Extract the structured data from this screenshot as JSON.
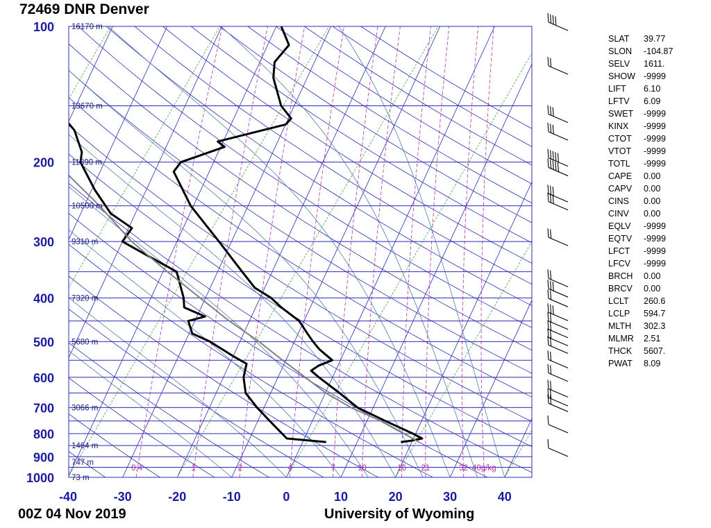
{
  "header": {
    "title": "72469 DNR Denver"
  },
  "footer": {
    "date": "00Z 04 Nov 2019",
    "source": "University of Wyoming"
  },
  "chart_data": {
    "type": "line",
    "title": "72469 DNR Denver",
    "subtitle": "00Z 04 Nov 2019",
    "xlabel": "",
    "ylabel": "",
    "xlim": [
      -40,
      45
    ],
    "ylim": [
      1000,
      100
    ],
    "y_scale": "log",
    "x_ticks": [
      "-40",
      "-30",
      "-20",
      "-10",
      "0",
      "10",
      "20",
      "30",
      "40"
    ],
    "pressure_ticks": [
      "100",
      "200",
      "300",
      "400",
      "500",
      "600",
      "700",
      "800",
      "900",
      "1000"
    ],
    "height_labels": [
      {
        "p": 100,
        "text": "16170 m"
      },
      {
        "p": 150,
        "text": "13670 m"
      },
      {
        "p": 200,
        "text": "11890 m"
      },
      {
        "p": 250,
        "text": "10500 m"
      },
      {
        "p": 300,
        "text": "9310 m"
      },
      {
        "p": 400,
        "text": "7320 m"
      },
      {
        "p": 500,
        "text": "5680 m"
      },
      {
        "p": 700,
        "text": "3066 m"
      },
      {
        "p": 850,
        "text": "1464 m"
      },
      {
        "p": 925,
        "text": "747 m"
      },
      {
        "p": 1000,
        "text": "73 m"
      }
    ],
    "mixing_ratio_labels": [
      "0.4",
      "1",
      "2",
      "4",
      "7",
      "10",
      "16",
      "21",
      "32",
      "40g/kg"
    ],
    "series": [
      {
        "kind": "temperature",
        "color": "#000000",
        "points": [
          {
            "p": 835,
            "t": 18.0
          },
          {
            "p": 830,
            "t": 19.6
          },
          {
            "p": 820,
            "t": 21.6
          },
          {
            "p": 800,
            "t": 19.5
          },
          {
            "p": 750,
            "t": 13.4
          },
          {
            "p": 700,
            "t": 7.1
          },
          {
            "p": 650,
            "t": 2.6
          },
          {
            "p": 600,
            "t": -2.5
          },
          {
            "p": 580,
            "t": -4.5
          },
          {
            "p": 565,
            "t": -3.5
          },
          {
            "p": 550,
            "t": -1.5
          },
          {
            "p": 520,
            "t": -4.8
          },
          {
            "p": 500,
            "t": -6.6
          },
          {
            "p": 480,
            "t": -8.3
          },
          {
            "p": 450,
            "t": -10.9
          },
          {
            "p": 420,
            "t": -15.3
          },
          {
            "p": 400,
            "t": -18.0
          },
          {
            "p": 380,
            "t": -21.8
          },
          {
            "p": 350,
            "t": -25.5
          },
          {
            "p": 300,
            "t": -32.3
          },
          {
            "p": 250,
            "t": -40.5
          },
          {
            "p": 210,
            "t": -46.5
          },
          {
            "p": 200,
            "t": -46.0
          },
          {
            "p": 185,
            "t": -39.3
          },
          {
            "p": 180,
            "t": -41.0
          },
          {
            "p": 165,
            "t": -30.0
          },
          {
            "p": 160,
            "t": -29.5
          },
          {
            "p": 150,
            "t": -32.4
          },
          {
            "p": 130,
            "t": -36.2
          },
          {
            "p": 120,
            "t": -37.3
          },
          {
            "p": 110,
            "t": -36.1
          },
          {
            "p": 100,
            "t": -39.1
          }
        ]
      },
      {
        "kind": "dewpoint",
        "color": "#000000",
        "points": [
          {
            "p": 835,
            "t": 4.3
          },
          {
            "p": 820,
            "t": -3.2
          },
          {
            "p": 750,
            "t": -7.8
          },
          {
            "p": 700,
            "t": -11.3
          },
          {
            "p": 650,
            "t": -14.6
          },
          {
            "p": 600,
            "t": -16.3
          },
          {
            "p": 560,
            "t": -16.9
          },
          {
            "p": 540,
            "t": -19.8
          },
          {
            "p": 520,
            "t": -22.6
          },
          {
            "p": 500,
            "t": -25.5
          },
          {
            "p": 480,
            "t": -29.4
          },
          {
            "p": 450,
            "t": -31.2
          },
          {
            "p": 440,
            "t": -28.5
          },
          {
            "p": 420,
            "t": -33.1
          },
          {
            "p": 400,
            "t": -34.0
          },
          {
            "p": 350,
            "t": -37.5
          },
          {
            "p": 320,
            "t": -44.8
          },
          {
            "p": 300,
            "t": -50.0
          },
          {
            "p": 280,
            "t": -49.4
          },
          {
            "p": 260,
            "t": -54.5
          },
          {
            "p": 230,
            "t": -59.5
          },
          {
            "p": 200,
            "t": -64.4
          },
          {
            "p": 190,
            "t": -65.0
          },
          {
            "p": 170,
            "t": -68.2
          },
          {
            "p": 150,
            "t": -74.0
          },
          {
            "p": 130,
            "t": -75.2
          },
          {
            "p": 120,
            "t": -76.5
          },
          {
            "p": 110,
            "t": -78.7
          },
          {
            "p": 100,
            "t": -79.6
          }
        ]
      },
      {
        "kind": "parcel",
        "color": "#808080",
        "points": [
          {
            "p": 835,
            "t": 21.3
          },
          {
            "p": 800,
            "t": 17.9
          },
          {
            "p": 750,
            "t": 12.6
          },
          {
            "p": 700,
            "t": 5.9
          },
          {
            "p": 650,
            "t": 0.1
          },
          {
            "p": 600,
            "t": -5.0
          },
          {
            "p": 550,
            "t": -10.6
          },
          {
            "p": 500,
            "t": -16.5
          },
          {
            "p": 450,
            "t": -23.7
          },
          {
            "p": 400,
            "t": -31.0
          },
          {
            "p": 350,
            "t": -39.2
          },
          {
            "p": 300,
            "t": -48.3
          },
          {
            "p": 250,
            "t": -57.2
          },
          {
            "p": 200,
            "t": -69.0
          },
          {
            "p": 150,
            "t": -81.4
          },
          {
            "p": 125,
            "t": -88.4
          },
          {
            "p": 110,
            "t": -93.6
          },
          {
            "p": 100,
            "t": -98.4
          }
        ]
      }
    ],
    "grid": true
  },
  "wind_barbs": [
    {
      "p": 100,
      "barbs": 4
    },
    {
      "p": 125,
      "barbs": 2
    },
    {
      "p": 160,
      "barbs": 3
    },
    {
      "p": 175,
      "barbs": 3
    },
    {
      "p": 200,
      "barbs": 5
    },
    {
      "p": 210,
      "barbs": 5
    },
    {
      "p": 240,
      "barbs": 3
    },
    {
      "p": 250,
      "barbs": 3
    },
    {
      "p": 300,
      "barbs": 2
    },
    {
      "p": 370,
      "barbs": 2
    },
    {
      "p": 390,
      "barbs": 3
    },
    {
      "p": 410,
      "barbs": 2
    },
    {
      "p": 440,
      "barbs": 3
    },
    {
      "p": 460,
      "barbs": 2
    },
    {
      "p": 480,
      "barbs": 2
    },
    {
      "p": 500,
      "barbs": 2
    },
    {
      "p": 520,
      "barbs": 2
    },
    {
      "p": 560,
      "barbs": 2
    },
    {
      "p": 600,
      "barbs": 2
    },
    {
      "p": 650,
      "barbs": 2
    },
    {
      "p": 680,
      "barbs": 2
    },
    {
      "p": 700,
      "barbs": 2
    },
    {
      "p": 780,
      "barbs": 1
    },
    {
      "p": 880,
      "barbs": 1
    }
  ],
  "indices": [
    {
      "name": "SLAT",
      "value": "39.77"
    },
    {
      "name": "SLON",
      "value": "-104.87"
    },
    {
      "name": "SELV",
      "value": "1611."
    },
    {
      "name": "SHOW",
      "value": "-9999"
    },
    {
      "name": "LIFT",
      "value": "6.10"
    },
    {
      "name": "LFTV",
      "value": "6.09"
    },
    {
      "name": "SWET",
      "value": "-9999"
    },
    {
      "name": "KINX",
      "value": "-9999"
    },
    {
      "name": "CTOT",
      "value": "-9999"
    },
    {
      "name": "VTOT",
      "value": "-9999"
    },
    {
      "name": "TOTL",
      "value": "-9999"
    },
    {
      "name": "CAPE",
      "value": "0.00"
    },
    {
      "name": "CAPV",
      "value": "0.00"
    },
    {
      "name": "CINS",
      "value": "0.00"
    },
    {
      "name": "CINV",
      "value": "0.00"
    },
    {
      "name": "EQLV",
      "value": "-9999"
    },
    {
      "name": "EQTV",
      "value": "-9999"
    },
    {
      "name": "LFCT",
      "value": "-9999"
    },
    {
      "name": "LFCV",
      "value": "-9999"
    },
    {
      "name": "BRCH",
      "value": "0.00"
    },
    {
      "name": "BRCV",
      "value": "0.00"
    },
    {
      "name": "LCLT",
      "value": "260.6"
    },
    {
      "name": "LCLP",
      "value": "594.7"
    },
    {
      "name": "MLTH",
      "value": "302.3"
    },
    {
      "name": "MLMR",
      "value": "2.51"
    },
    {
      "name": "THCK",
      "value": "5607."
    },
    {
      "name": "PWAT",
      "value": "8.09"
    }
  ],
  "colors": {
    "isobar": "#2b2bb4",
    "isotherm": "#2b2bb4",
    "dry_adiabat": "#2b2bb4",
    "moist_adiabat": "#4a7fb0",
    "mixing_ratio": "#b030b0",
    "green_line": "#2a9a2a",
    "axis_label": "#1a1aa0",
    "height_label": "#1a1a7a",
    "mixing_label": "#b030b0"
  }
}
